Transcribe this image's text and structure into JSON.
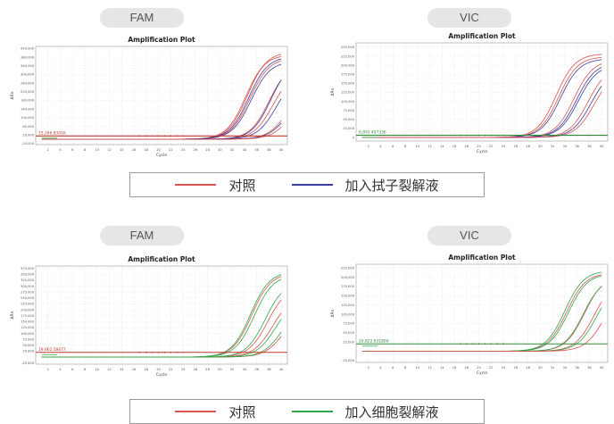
{
  "panels": [
    {
      "label": "FAM"
    },
    {
      "label": "VIC"
    },
    {
      "label": "FAM"
    },
    {
      "label": "VIC"
    }
  ],
  "chart_data": [
    {
      "type": "line",
      "title": "Amplification Plot",
      "xlabel": "Cycle",
      "ylabel": "ΔRn",
      "x_ticks": [
        2,
        4,
        6,
        8,
        10,
        12,
        14,
        16,
        18,
        20,
        22,
        24,
        26,
        28,
        30,
        32,
        34,
        36,
        38,
        40
      ],
      "y_ticks": [
        -20000,
        20000,
        60000,
        100000,
        140000,
        180000,
        220000,
        260000,
        300000,
        340000,
        380000,
        420000
      ],
      "ylim": [
        -25000,
        430000
      ],
      "threshold": {
        "value": 15000,
        "label": "15,296.83016",
        "color": "#c0392b"
      },
      "series": [
        {
          "color": "#d9534f",
          "ct": 30.2,
          "plateau": 392000
        },
        {
          "color": "#d9534f",
          "ct": 30.5,
          "plateau": 405000
        },
        {
          "color": "#d9534f",
          "ct": 30.9,
          "plateau": 376000
        },
        {
          "color": "#3b3b9e",
          "ct": 30.7,
          "plateau": 384000
        },
        {
          "color": "#3b3b9e",
          "ct": 31.1,
          "plateau": 362000
        },
        {
          "color": "#d9534f",
          "ct": 34.0,
          "plateau": 350000
        },
        {
          "color": "#d9534f",
          "ct": 34.6,
          "plateau": 312000
        },
        {
          "color": "#3b3b9e",
          "ct": 34.3,
          "plateau": 366000
        },
        {
          "color": "#3b3b9e",
          "ct": 35.2,
          "plateau": 300000
        },
        {
          "color": "#d9534f",
          "ct": 36.8,
          "plateau": 232000
        },
        {
          "color": "#3b3b9e",
          "ct": 37.0,
          "plateau": 218000
        },
        {
          "color": "#d9534f",
          "ct": 37.5,
          "plateau": 202000
        }
      ]
    },
    {
      "type": "line",
      "title": "Amplification Plot",
      "xlabel": "Cycle",
      "ylabel": "ΔRn",
      "x_ticks": [
        2,
        4,
        6,
        8,
        10,
        12,
        14,
        16,
        18,
        20,
        22,
        24,
        26,
        28,
        30,
        32,
        34,
        36,
        38,
        40
      ],
      "y_ticks": [
        0,
        25000,
        50000,
        75000,
        100000,
        125000,
        150000,
        175000,
        200000,
        225000,
        250000
      ],
      "ylim": [
        -10000,
        262000
      ],
      "threshold": {
        "value": 6000,
        "label": "6,891.457336",
        "color": "#2e8b3a"
      },
      "series": [
        {
          "color": "#d9534f",
          "ct": 28.6,
          "plateau": 232000
        },
        {
          "color": "#d9534f",
          "ct": 29.0,
          "plateau": 224000
        },
        {
          "color": "#3b3b9e",
          "ct": 29.3,
          "plateau": 218000
        },
        {
          "color": "#d9534f",
          "ct": 31.5,
          "plateau": 215000
        },
        {
          "color": "#3b3b9e",
          "ct": 31.9,
          "plateau": 208000
        },
        {
          "color": "#3b3b9e",
          "ct": 32.2,
          "plateau": 202000
        },
        {
          "color": "#d9534f",
          "ct": 33.8,
          "plateau": 198000
        },
        {
          "color": "#3b3b9e",
          "ct": 34.3,
          "plateau": 190000
        },
        {
          "color": "#d9534f",
          "ct": 34.8,
          "plateau": 184000
        }
      ]
    },
    {
      "type": "line",
      "title": "Amplification Plot",
      "xlabel": "Cycle",
      "ylabel": "ΔRn",
      "x_ticks": [
        2,
        4,
        6,
        8,
        10,
        12,
        14,
        16,
        18,
        20,
        22,
        24,
        26,
        28,
        30,
        32,
        34,
        36,
        38,
        40
      ],
      "y_ticks": [
        -25000,
        25000,
        50000,
        75000,
        100000,
        125000,
        150000,
        175000,
        200000,
        225000,
        250000,
        275000,
        300000,
        325000,
        350000,
        375000
      ],
      "ylim": [
        -30000,
        385000
      ],
      "threshold": {
        "value": 20000,
        "label": "19,662.58677",
        "color": "#c0392b"
      },
      "series": [
        {
          "color": "#d9534f",
          "ct": 31.2,
          "plateau": 356000
        },
        {
          "color": "#2ea84a",
          "ct": 31.0,
          "plateau": 362000
        },
        {
          "color": "#2ea84a",
          "ct": 31.6,
          "plateau": 348000
        },
        {
          "color": "#d9534f",
          "ct": 33.8,
          "plateau": 300000
        },
        {
          "color": "#2ea84a",
          "ct": 33.4,
          "plateau": 320000
        },
        {
          "color": "#d9534f",
          "ct": 34.6,
          "plateau": 262000
        },
        {
          "color": "#2ea84a",
          "ct": 35.1,
          "plateau": 250000
        },
        {
          "color": "#d9534f",
          "ct": 36.5,
          "plateau": 210000
        },
        {
          "color": "#2ea84a",
          "ct": 36.2,
          "plateau": 226000
        }
      ]
    },
    {
      "type": "line",
      "title": "Amplification Plot",
      "xlabel": "Cycle",
      "ylabel": "ΔRn",
      "x_ticks": [
        2,
        4,
        6,
        8,
        10,
        12,
        14,
        16,
        18,
        20,
        22,
        24,
        26,
        28,
        30,
        32,
        34,
        36,
        38,
        40
      ],
      "y_ticks": [
        -25000,
        25000,
        50000,
        75000,
        100000,
        125000,
        150000,
        175000,
        200000,
        225000
      ],
      "ylim": [
        -30000,
        235000
      ],
      "threshold": {
        "value": 20000,
        "label": "20,822.631809",
        "color": "#2e8b3a"
      },
      "series": [
        {
          "color": "#d9534f",
          "ct": 30.3,
          "plateau": 212000
        },
        {
          "color": "#2ea84a",
          "ct": 30.0,
          "plateau": 218000
        },
        {
          "color": "#2ea84a",
          "ct": 30.6,
          "plateau": 210000
        },
        {
          "color": "#d9534f",
          "ct": 33.2,
          "plateau": 205000
        },
        {
          "color": "#2ea84a",
          "ct": 33.0,
          "plateau": 200000
        },
        {
          "color": "#d9534f",
          "ct": 34.8,
          "plateau": 195000
        },
        {
          "color": "#2ea84a",
          "ct": 35.2,
          "plateau": 188000
        },
        {
          "color": "#d9534f",
          "ct": 36.4,
          "plateau": 175000
        }
      ]
    }
  ],
  "legends": [
    {
      "items": [
        {
          "text": "对照",
          "color": "#d9534f"
        },
        {
          "text": "加入拭子裂解液",
          "color": "#3b3b9e"
        }
      ]
    },
    {
      "items": [
        {
          "text": "对照",
          "color": "#d9534f"
        },
        {
          "text": "加入细胞裂解液",
          "color": "#2ea84a"
        }
      ]
    }
  ]
}
